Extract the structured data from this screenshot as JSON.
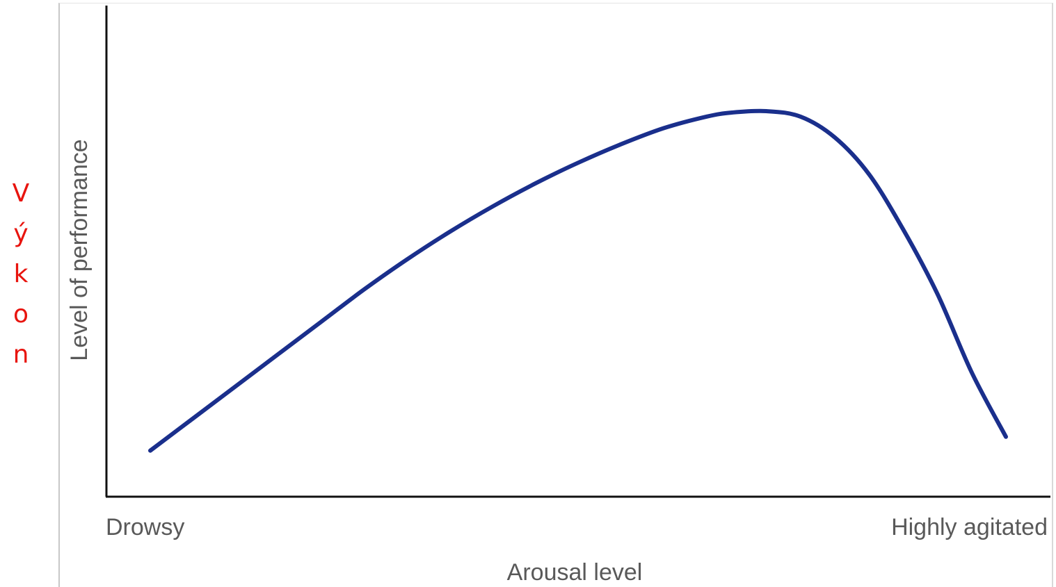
{
  "side_label": "V\ný\nk\no\nn",
  "colors": {
    "curve": "#1a2f8c",
    "axis": "#111111",
    "text": "#595959",
    "side_label": "#e8140e"
  },
  "chart_data": {
    "type": "line",
    "title": "",
    "xlabel": "Arousal level",
    "ylabel": "Level of performance",
    "x_tick_labels": [
      "Drowsy",
      "Highly agitated"
    ],
    "xlim": [
      0,
      100
    ],
    "ylim": [
      0,
      100
    ],
    "grid": false,
    "legend": "none",
    "series": [
      {
        "x": [
          0,
          5,
          10,
          15,
          20,
          25,
          30,
          35,
          40,
          45,
          50,
          55,
          60,
          65,
          68,
          72,
          76,
          80,
          84,
          88,
          92,
          96,
          100
        ],
        "y": [
          10,
          17,
          24,
          31,
          38,
          45,
          51.5,
          57.5,
          63,
          68,
          72.5,
          76.5,
          80,
          82.5,
          83.4,
          83.7,
          82.5,
          78,
          70,
          58,
          44,
          27,
          13
        ]
      }
    ]
  }
}
